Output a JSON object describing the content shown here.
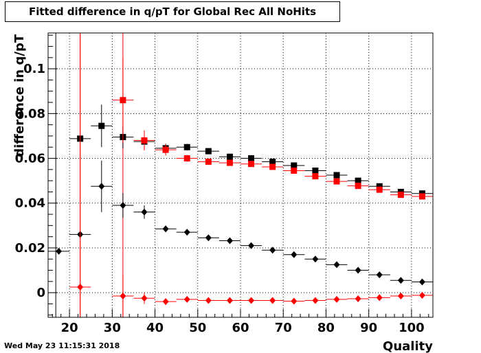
{
  "chart_data": {
    "type": "scatter",
    "title": "Fitted difference in q/pT for Global Rec All NoHits",
    "xlabel": "Quality",
    "ylabel": "difference in q/pT",
    "xlim": [
      15,
      105
    ],
    "ylim": [
      -0.011,
      0.116
    ],
    "x_ticks": [
      20,
      30,
      40,
      50,
      60,
      70,
      80,
      90,
      100
    ],
    "x_tick_labels": [
      "20",
      "30",
      "40",
      "50",
      "60",
      "70",
      "80",
      "90",
      "100"
    ],
    "y_ticks": [
      0,
      0.02,
      0.04,
      0.06,
      0.08,
      0.1
    ],
    "y_tick_labels": [
      "0",
      "0.02",
      "0.04",
      "0.06",
      "0.08",
      "0.1"
    ],
    "grid": true,
    "bin_half_width": 2.5,
    "series": [
      {
        "marker": "square",
        "color": "#000000",
        "x": [
          22.5,
          27.5,
          32.5,
          37.5,
          42.5,
          47.5,
          52.5,
          57.5,
          62.5,
          67.5,
          72.5,
          77.5,
          82.5,
          87.5,
          92.5,
          97.5,
          102.5
        ],
        "y": [
          0.0688,
          0.0745,
          0.0695,
          0.0675,
          0.0645,
          0.065,
          0.0632,
          0.0607,
          0.06,
          0.0585,
          0.0568,
          0.0545,
          0.0525,
          0.05,
          0.0475,
          0.045,
          0.0443
        ],
        "yerr": [
          0,
          0.0095,
          0.005,
          0.0025,
          0.002,
          0.0015,
          0.001,
          0.001,
          0.001,
          0.001,
          0.001,
          0.001,
          0.001,
          0.001,
          0.001,
          0.001,
          0.001
        ]
      },
      {
        "marker": "square",
        "color": "#ff0000",
        "x": [
          32.5,
          37.5,
          42.5,
          47.5,
          52.5,
          57.5,
          62.5,
          67.5,
          72.5,
          77.5,
          82.5,
          87.5,
          92.5,
          97.5,
          102.5
        ],
        "y": [
          0.086,
          0.068,
          0.0638,
          0.06,
          0.0585,
          0.058,
          0.0575,
          0.0562,
          0.0545,
          0.052,
          0.0497,
          0.0477,
          0.046,
          0.0437,
          0.043
        ],
        "yerr": [
          0.019,
          0.0045,
          0.0025,
          0.0015,
          0.001,
          0.001,
          0.001,
          0.001,
          0.001,
          0.001,
          0.001,
          0.001,
          0.001,
          0.001,
          0.001
        ]
      },
      {
        "marker": "diamond",
        "color": "#000000",
        "x": [
          17.5,
          22.5,
          27.5,
          32.5,
          37.5,
          42.5,
          47.5,
          52.5,
          57.5,
          62.5,
          67.5,
          72.5,
          77.5,
          82.5,
          87.5,
          92.5,
          97.5,
          102.5
        ],
        "y": [
          0.0185,
          0.026,
          0.0475,
          0.039,
          0.036,
          0.0285,
          0.027,
          0.0245,
          0.0232,
          0.021,
          0.019,
          0.017,
          0.015,
          0.0125,
          0.01,
          0.008,
          0.0055,
          0.0048
        ],
        "yerr": [
          0,
          0,
          0.0115,
          0.0055,
          0.003,
          0.0015,
          0.001,
          0.001,
          0.001,
          0.001,
          0.001,
          0.001,
          0.001,
          0.001,
          0.001,
          0.001,
          0.001,
          0.001
        ]
      },
      {
        "marker": "diamond",
        "color": "#ff0000",
        "x": [
          22.5,
          32.5,
          37.5,
          42.5,
          47.5,
          52.5,
          57.5,
          62.5,
          67.5,
          72.5,
          77.5,
          82.5,
          87.5,
          92.5,
          97.5,
          102.5
        ],
        "y": [
          0.0025,
          -0.0015,
          -0.0025,
          -0.004,
          -0.003,
          -0.0035,
          -0.0035,
          -0.0035,
          -0.0035,
          -0.0038,
          -0.0035,
          -0.003,
          -0.0027,
          -0.0022,
          -0.0015,
          -0.0012
        ],
        "yerr": [
          0.2,
          0.0095,
          0.0025,
          0.0015,
          0.001,
          0.001,
          0.001,
          0.001,
          0.001,
          0.001,
          0.001,
          0.001,
          0.001,
          0.001,
          0.001,
          0.001
        ]
      }
    ],
    "vertical_lines": [
      {
        "x": 16.8,
        "color": "#000000"
      },
      {
        "x": 22.5,
        "color": "#ff0000"
      },
      {
        "x": 32.5,
        "color": "#ff0000"
      }
    ]
  },
  "footer": {
    "timestamp": "Wed May 23 11:15:31 2018"
  }
}
